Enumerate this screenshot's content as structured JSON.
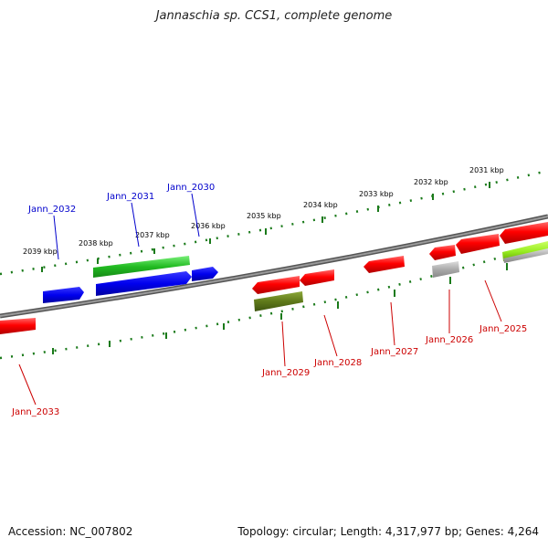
{
  "title": "Jannaschia sp. CCS1, complete genome",
  "footer": {
    "accession": "Accession: NC_007802",
    "summary": "Topology: circular; Length: 4,317,977 bp; Genes: 4,264"
  },
  "colors": {
    "backbone": "#777777",
    "tick": "#1a7a1a",
    "plus_label": "#0000cc",
    "minus_label": "#cc0000",
    "kbp_label": "#000000"
  },
  "scale_labels": [
    "2039 kbp",
    "2038 kbp",
    "2037 kbp",
    "2036 kbp",
    "2035 kbp",
    "2034 kbp",
    "2033 kbp",
    "2032 kbp",
    "2031 kbp"
  ],
  "gene_labels": {
    "plus": [
      "Jann_2032",
      "Jann_2031",
      "Jann_2030"
    ],
    "minus": [
      "Jann_2033",
      "Jann_2029",
      "Jann_2028",
      "Jann_2027",
      "Jann_2026",
      "Jann_2025"
    ]
  }
}
